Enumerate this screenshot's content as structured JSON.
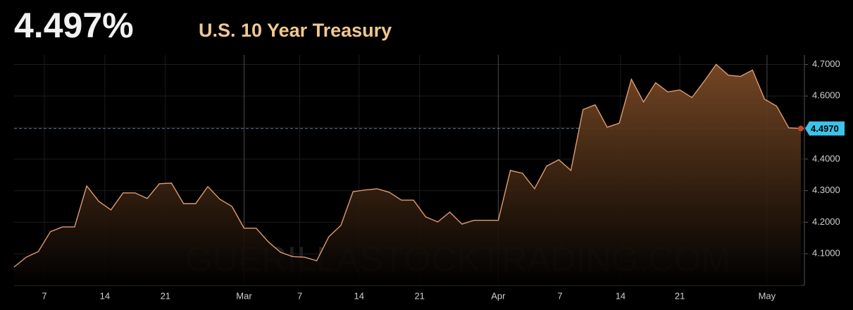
{
  "chart_data": {
    "type": "area",
    "headline": "4.497%",
    "title": "U.S. 10 Year Treasury",
    "watermark": "GUERILLASTOCKTRADING.COM",
    "color": "#e39a6c",
    "values": [
      4.058,
      4.089,
      4.107,
      4.17,
      4.185,
      4.185,
      4.315,
      4.266,
      4.239,
      4.293,
      4.293,
      4.275,
      4.322,
      4.324,
      4.259,
      4.259,
      4.313,
      4.273,
      4.25,
      4.181,
      4.181,
      4.138,
      4.105,
      4.091,
      4.089,
      4.078,
      4.154,
      4.19,
      4.297,
      4.302,
      4.306,
      4.295,
      4.27,
      4.27,
      4.217,
      4.201,
      4.232,
      4.194,
      4.206,
      4.206,
      4.206,
      4.364,
      4.355,
      4.306,
      4.378,
      4.398,
      4.364,
      4.557,
      4.572,
      4.501,
      4.514,
      4.653,
      4.581,
      4.642,
      4.613,
      4.619,
      4.595,
      4.646,
      4.7,
      4.666,
      4.662,
      4.682,
      4.59,
      4.568,
      4.499,
      4.497
    ],
    "current": {
      "value": 4.497,
      "label": "4.4970"
    },
    "xlim": [
      0,
      65
    ],
    "xticks": [
      {
        "value": 2.5,
        "label": "7"
      },
      {
        "value": 7.5,
        "label": "14"
      },
      {
        "value": 12.5,
        "label": "21"
      },
      {
        "value": 19,
        "label": "Mar"
      },
      {
        "value": 23.6,
        "label": "7"
      },
      {
        "value": 28.5,
        "label": "14"
      },
      {
        "value": 33.5,
        "label": "21"
      },
      {
        "value": 40,
        "label": "Apr"
      },
      {
        "value": 45.1,
        "label": "7"
      },
      {
        "value": 50.1,
        "label": "14"
      },
      {
        "value": 55,
        "label": "21"
      },
      {
        "value": 62.2,
        "label": "May"
      }
    ],
    "ylim": [
      4.0,
      4.73
    ],
    "yticks": [
      {
        "value": 4.1,
        "label": "4.1000"
      },
      {
        "value": 4.2,
        "label": "4.2000"
      },
      {
        "value": 4.3,
        "label": "4.3000"
      },
      {
        "value": 4.4,
        "label": "4.4000"
      },
      {
        "value": 4.5,
        "label": "4.5000"
      },
      {
        "value": 4.6,
        "label": "4.6000"
      },
      {
        "value": 4.7,
        "label": "4.7000"
      }
    ],
    "grid": true
  }
}
